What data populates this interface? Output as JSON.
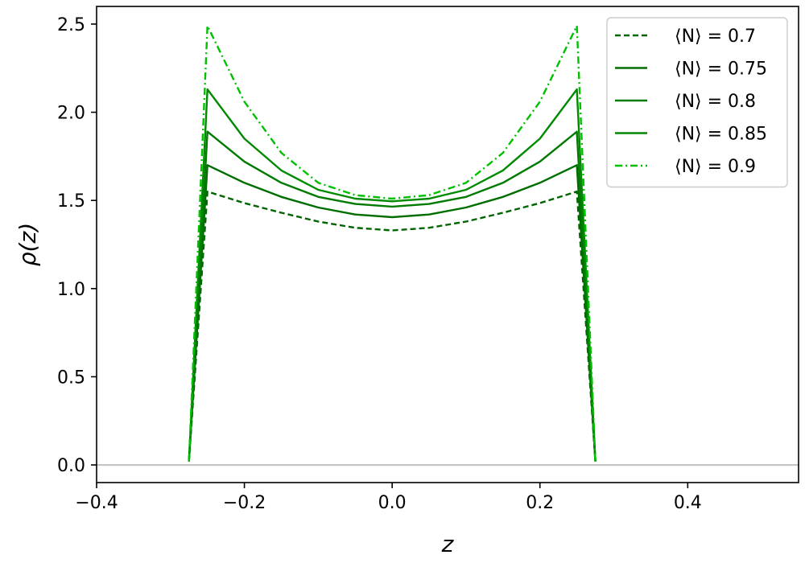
{
  "chart_data": {
    "type": "line",
    "xlabel": "z",
    "ylabel": "ρ(z)",
    "xlim": [
      -0.4,
      0.55
    ],
    "ylim": [
      -0.1,
      2.6
    ],
    "xticks": [
      -0.4,
      -0.2,
      0.0,
      0.2,
      0.4
    ],
    "xtick_labels": [
      "−0.4",
      "−0.2",
      "0.0",
      "0.2",
      "0.4"
    ],
    "yticks": [
      0.0,
      0.5,
      1.0,
      1.5,
      2.0,
      2.5
    ],
    "ytick_labels": [
      "0.0",
      "0.5",
      "1.0",
      "1.5",
      "2.0",
      "2.5"
    ],
    "grid": false,
    "legend_position": "top-right",
    "baseline": {
      "y": 0.0,
      "color": "#c0c0c0"
    },
    "series": [
      {
        "name": "⟨N⟩ = 0.7",
        "color": "#006400",
        "style": "dashed",
        "x": [
          -0.275,
          -0.25,
          -0.2,
          -0.15,
          -0.1,
          -0.05,
          0.0,
          0.05,
          0.1,
          0.15,
          0.2,
          0.25,
          0.275
        ],
        "y": [
          0.02,
          1.55,
          1.485,
          1.43,
          1.38,
          1.345,
          1.33,
          1.345,
          1.38,
          1.43,
          1.485,
          1.55,
          0.02
        ]
      },
      {
        "name": "⟨N⟩ = 0.75",
        "color": "#006d00",
        "style": "solid",
        "x": [
          -0.275,
          -0.25,
          -0.2,
          -0.15,
          -0.1,
          -0.05,
          0.0,
          0.05,
          0.1,
          0.15,
          0.2,
          0.25,
          0.275
        ],
        "y": [
          0.02,
          1.7,
          1.6,
          1.52,
          1.46,
          1.42,
          1.405,
          1.42,
          1.46,
          1.52,
          1.6,
          1.7,
          0.02
        ]
      },
      {
        "name": "⟨N⟩ = 0.8",
        "color": "#007a00",
        "style": "solid",
        "x": [
          -0.275,
          -0.25,
          -0.2,
          -0.15,
          -0.1,
          -0.05,
          0.0,
          0.05,
          0.1,
          0.15,
          0.2,
          0.25,
          0.275
        ],
        "y": [
          0.02,
          1.89,
          1.72,
          1.6,
          1.52,
          1.48,
          1.465,
          1.48,
          1.52,
          1.6,
          1.72,
          1.89,
          0.02
        ]
      },
      {
        "name": "⟨N⟩ = 0.85",
        "color": "#008a00",
        "style": "solid",
        "x": [
          -0.275,
          -0.25,
          -0.2,
          -0.15,
          -0.1,
          -0.05,
          0.0,
          0.05,
          0.1,
          0.15,
          0.2,
          0.25,
          0.275
        ],
        "y": [
          0.02,
          2.13,
          1.85,
          1.67,
          1.56,
          1.51,
          1.495,
          1.51,
          1.56,
          1.67,
          1.85,
          2.13,
          0.02
        ]
      },
      {
        "name": "⟨N⟩ = 0.9",
        "color": "#00c000",
        "style": "dashdot",
        "x": [
          -0.275,
          -0.25,
          -0.2,
          -0.15,
          -0.1,
          -0.05,
          0.0,
          0.05,
          0.1,
          0.15,
          0.2,
          0.25,
          0.275
        ],
        "y": [
          0.02,
          2.49,
          2.06,
          1.77,
          1.6,
          1.53,
          1.51,
          1.53,
          1.6,
          1.77,
          2.06,
          2.49,
          0.02
        ]
      }
    ]
  }
}
